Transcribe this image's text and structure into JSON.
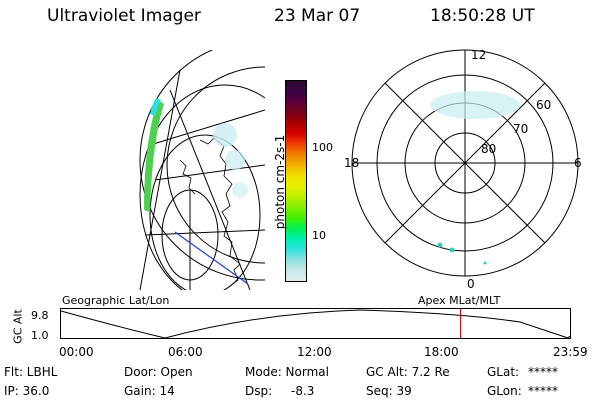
{
  "header": {
    "instrument": "Ultraviolet Imager",
    "date": "23 Mar 07",
    "time": "18:50:28 UT"
  },
  "colorbar": {
    "label": "photon cm-2s-1",
    "ticks": [
      "100",
      "10"
    ],
    "colors": [
      "#2a0a2a",
      "#3a0046",
      "#5a003a",
      "#7a0018",
      "#a80000",
      "#d80000",
      "#f04000",
      "#f08000",
      "#f0b000",
      "#f0e000",
      "#e8f000",
      "#b8f000",
      "#80f000",
      "#40f000",
      "#00f050",
      "#00f0b0",
      "#30e0e0",
      "#90e0e0",
      "#c8e8e8",
      "#e0ecec"
    ]
  },
  "polar_plot": {
    "mlt_labels": {
      "top": "12",
      "left": "18",
      "right": "6",
      "bottom": "0"
    },
    "lat_labels": [
      "60",
      "70",
      "80"
    ]
  },
  "timeline": {
    "y_axis_label": "GC Alt",
    "y_ticks": [
      "9.8",
      "1.0"
    ],
    "left_caption": "Geographic Lat/Lon",
    "right_caption": "Apex MLat/MLT",
    "time_ticks": [
      "00:00",
      "06:00",
      "12:00",
      "18:00",
      "23:59"
    ],
    "current_time_hours": 18.84,
    "marker_color": "#cc0000"
  },
  "status": {
    "flt": "Flt: LBHL",
    "ip": "IP: 36.0",
    "door": "Door: Open",
    "gain": "Gain: 14",
    "mode": "Mode: Normal",
    "dsp_label": "Dsp:",
    "dsp_value": "-8.3",
    "gc_alt": "GC Alt: 7.2 Re",
    "seq": "Seq: 39",
    "glat_label": "GLat:",
    "glat_value": "*****",
    "glon_label": "GLon:",
    "glon_value": "*****"
  }
}
